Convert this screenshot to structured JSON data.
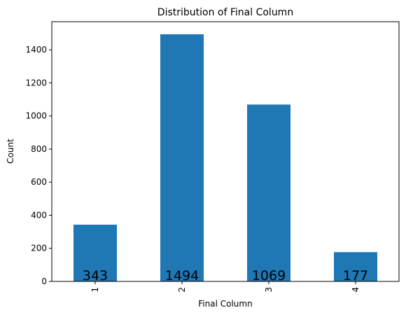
{
  "chart_data": {
    "type": "bar",
    "title": "Distribution of Final Column",
    "xlabel": "Final Column",
    "ylabel": "Count",
    "categories": [
      "1",
      "2",
      "3",
      "4"
    ],
    "values": [
      343,
      1494,
      1069,
      177
    ],
    "data_labels": [
      "343",
      "1494",
      "1069",
      "177"
    ],
    "ylim": [
      0,
      1570
    ],
    "yticks": [
      0,
      200,
      400,
      600,
      800,
      1000,
      1200,
      1400
    ],
    "grid": false,
    "legend": "none",
    "bar_color": "#1f77b4"
  }
}
